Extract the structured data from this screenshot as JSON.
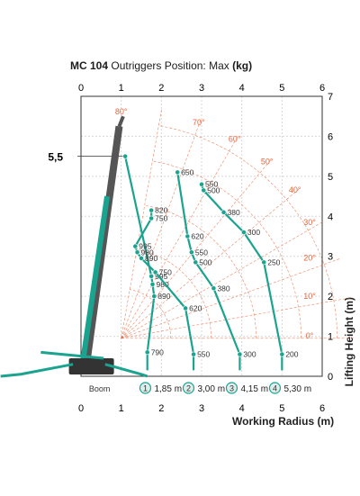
{
  "chart_data": {
    "type": "scatter",
    "title_model": "MC 104",
    "title_text": " Outriggers Position: Max ",
    "title_unit": "(kg)",
    "xlabel": "Working Radius (m)",
    "ylabel": "Lifting Height (m)",
    "xlim": [
      0,
      6
    ],
    "ylim": [
      0,
      7
    ],
    "x_ticks": [
      "0",
      "1",
      "2",
      "3",
      "4",
      "5",
      "6"
    ],
    "y_ticks": [
      "0",
      "1",
      "2",
      "3",
      "4",
      "5",
      "6",
      "7"
    ],
    "height_marker": "5,5",
    "angles": [
      "0°",
      "10°",
      "20°",
      "30°",
      "40°",
      "50°",
      "60°",
      "70°",
      "80°"
    ],
    "boom_legend_label": "Boom",
    "series": [
      {
        "name": "1,85 m",
        "marker": "1",
        "points": [
          {
            "x": 1.1,
            "y": 5.5,
            "label": ""
          },
          {
            "x": 1.75,
            "y": 2.5,
            "label": "995"
          },
          {
            "x": 1.78,
            "y": 2.3,
            "label": "980"
          },
          {
            "x": 1.82,
            "y": 2.0,
            "label": "890"
          },
          {
            "x": 1.65,
            "y": 0.6,
            "label": "790"
          }
        ]
      },
      {
        "name": "3,00 m",
        "marker": "2",
        "points": [
          {
            "x": 1.75,
            "y": 4.15,
            "label": "820"
          },
          {
            "x": 1.75,
            "y": 3.95,
            "label": "750"
          },
          {
            "x": 1.35,
            "y": 3.25,
            "label": "995"
          },
          {
            "x": 1.4,
            "y": 3.1,
            "label": "980"
          },
          {
            "x": 1.5,
            "y": 2.95,
            "label": "890"
          },
          {
            "x": 1.85,
            "y": 2.6,
            "label": "750"
          },
          {
            "x": 2.6,
            "y": 1.7,
            "label": "620"
          },
          {
            "x": 2.8,
            "y": 0.55,
            "label": "550"
          }
        ]
      },
      {
        "name": "4,15 m",
        "marker": "3",
        "points": [
          {
            "x": 2.4,
            "y": 5.1,
            "label": "650"
          },
          {
            "x": 2.65,
            "y": 3.5,
            "label": "620"
          },
          {
            "x": 2.75,
            "y": 3.1,
            "label": "550"
          },
          {
            "x": 2.85,
            "y": 2.85,
            "label": "500"
          },
          {
            "x": 3.3,
            "y": 2.2,
            "label": "380"
          },
          {
            "x": 3.95,
            "y": 0.55,
            "label": "300"
          }
        ]
      },
      {
        "name": "5,30 m",
        "marker": "4",
        "points": [
          {
            "x": 3.0,
            "y": 4.8,
            "label": "550"
          },
          {
            "x": 3.05,
            "y": 4.65,
            "label": "500"
          },
          {
            "x": 3.55,
            "y": 4.1,
            "label": "380"
          },
          {
            "x": 4.05,
            "y": 3.6,
            "label": "300"
          },
          {
            "x": 4.55,
            "y": 2.85,
            "label": "250"
          },
          {
            "x": 5.0,
            "y": 0.55,
            "label": "200"
          }
        ]
      }
    ]
  },
  "colors": {
    "curve": "#1aa38f",
    "angle": "#e8643a",
    "boom": "#555555",
    "grid": "#d8d8d8"
  }
}
